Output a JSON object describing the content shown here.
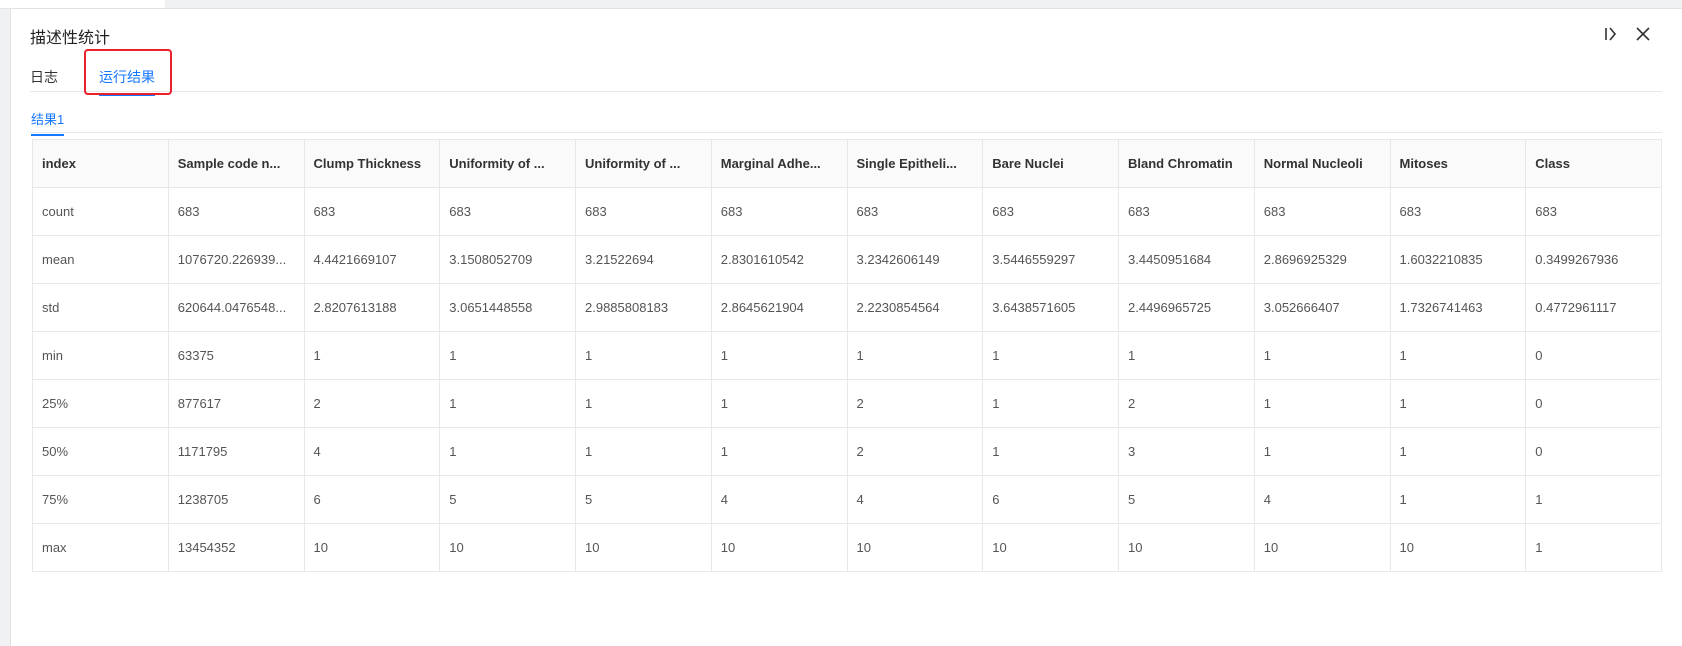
{
  "window": {
    "title": "描述性统计"
  },
  "tabs": [
    {
      "label": "日志",
      "active": false
    },
    {
      "label": "运行结果",
      "active": true
    }
  ],
  "subtabs": [
    {
      "label": "结果1",
      "active": true
    }
  ],
  "colors": {
    "accent": "#1677ff",
    "highlight": "#e8212a"
  },
  "icons": {
    "expand": "collapse-panel-icon",
    "close": "close-icon"
  },
  "table": {
    "headers": [
      "index",
      "Sample code n...",
      "Clump Thickness",
      "Uniformity of ...",
      "Uniformity of ...",
      "Marginal Adhe...",
      "Single Epitheli...",
      "Bare Nuclei",
      "Bland Chromatin",
      "Normal Nucleoli",
      "Mitoses",
      "Class"
    ],
    "rows": [
      [
        "count",
        "683",
        "683",
        "683",
        "683",
        "683",
        "683",
        "683",
        "683",
        "683",
        "683",
        "683"
      ],
      [
        "mean",
        "1076720.226939...",
        "4.4421669107",
        "3.1508052709",
        "3.21522694",
        "2.8301610542",
        "3.2342606149",
        "3.5446559297",
        "3.4450951684",
        "2.8696925329",
        "1.6032210835",
        "0.3499267936"
      ],
      [
        "std",
        "620644.0476548...",
        "2.8207613188",
        "3.0651448558",
        "2.9885808183",
        "2.8645621904",
        "2.2230854564",
        "3.6438571605",
        "2.4496965725",
        "3.052666407",
        "1.7326741463",
        "0.4772961117"
      ],
      [
        "min",
        "63375",
        "1",
        "1",
        "1",
        "1",
        "1",
        "1",
        "1",
        "1",
        "1",
        "0"
      ],
      [
        "25%",
        "877617",
        "2",
        "1",
        "1",
        "1",
        "2",
        "1",
        "2",
        "1",
        "1",
        "0"
      ],
      [
        "50%",
        "1171795",
        "4",
        "1",
        "1",
        "1",
        "2",
        "1",
        "3",
        "1",
        "1",
        "0"
      ],
      [
        "75%",
        "1238705",
        "6",
        "5",
        "5",
        "4",
        "4",
        "6",
        "5",
        "4",
        "1",
        "1"
      ],
      [
        "max",
        "13454352",
        "10",
        "10",
        "10",
        "10",
        "10",
        "10",
        "10",
        "10",
        "10",
        "1"
      ]
    ]
  }
}
